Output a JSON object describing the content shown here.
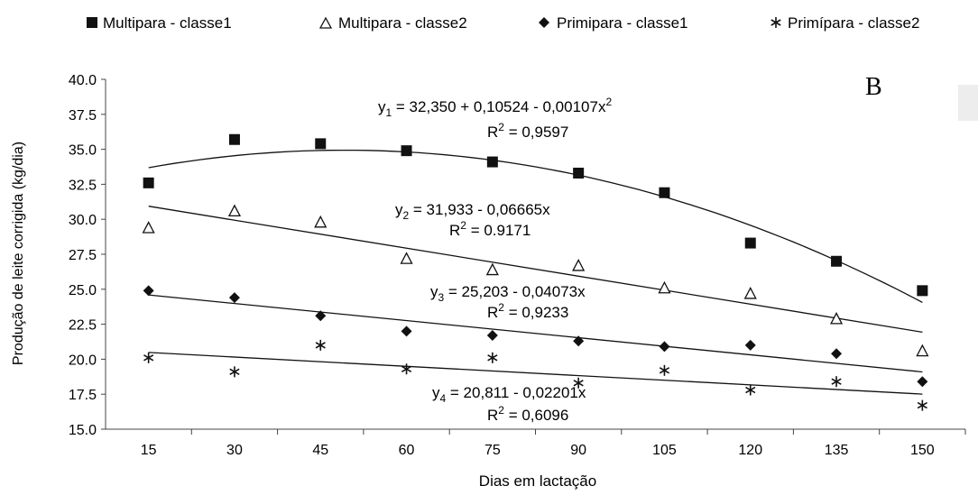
{
  "chart_data": {
    "type": "scatter",
    "panel_label": "B",
    "xlabel": "Dias em lactação",
    "ylabel": "Produção de leite corrigida (kg/dia)",
    "x": [
      15,
      30,
      45,
      60,
      75,
      90,
      105,
      120,
      135,
      150
    ],
    "ylim": [
      15.0,
      40.0
    ],
    "yticks": [
      "15.0",
      "17.5",
      "20.0",
      "22.5",
      "25.0",
      "27.5",
      "30.0",
      "32.5",
      "35.0",
      "37.5",
      "40.0"
    ],
    "xticks": [
      "15",
      "30",
      "45",
      "60",
      "75",
      "90",
      "105",
      "120",
      "135",
      "150"
    ],
    "grid": false,
    "legend_position": "top",
    "series": [
      {
        "name": "Multipara - classe1",
        "marker": "filled-square",
        "values": [
          32.6,
          35.7,
          35.4,
          34.9,
          34.1,
          33.3,
          31.9,
          28.3,
          27.0,
          24.9
        ],
        "fit": {
          "type": "quadratic",
          "coefficients": [
            32.35,
            0.10524,
            -0.00107
          ],
          "x_range": [
            15,
            150
          ]
        },
        "equation": {
          "prefix": "y",
          "sub": "1",
          "body": " = 32,350 + 0,10524 - 0,00107x",
          "sup": "2"
        },
        "r2": {
          "label": "R",
          "sup": "2",
          "value": " = 0,9597"
        }
      },
      {
        "name": "Multipara - classe2",
        "marker": "open-triangle",
        "values": [
          29.4,
          30.6,
          29.8,
          27.2,
          26.4,
          26.7,
          25.1,
          24.7,
          22.9,
          20.6
        ],
        "fit": {
          "type": "linear",
          "coefficients": [
            31.933,
            -0.06665
          ],
          "x_range": [
            15,
            150
          ]
        },
        "equation": {
          "prefix": "y",
          "sub": "2",
          "body": " = 31,933 - 0,06665x",
          "sup": ""
        },
        "r2": {
          "label": "R",
          "sup": "2",
          "value": " = 0.9171"
        }
      },
      {
        "name": "Primipara - classe1",
        "marker": "filled-diamond",
        "values": [
          24.9,
          24.4,
          23.1,
          22.0,
          21.7,
          21.3,
          20.9,
          21.0,
          20.4,
          18.4
        ],
        "fit": {
          "type": "linear",
          "coefficients": [
            25.203,
            -0.04073
          ],
          "x_range": [
            15,
            150
          ]
        },
        "equation": {
          "prefix": "y",
          "sub": "3",
          "body": " = 25,203 - 0,04073x",
          "sup": ""
        },
        "r2": {
          "label": "R",
          "sup": "2",
          "value": " = 0,9233"
        }
      },
      {
        "name": "Primípara - classe2",
        "marker": "asterisk",
        "values": [
          20.1,
          19.1,
          21.0,
          19.3,
          20.1,
          18.3,
          19.2,
          17.8,
          18.4,
          16.7
        ],
        "fit": {
          "type": "linear",
          "coefficients": [
            20.811,
            -0.02201
          ],
          "x_range": [
            15,
            150
          ]
        },
        "equation": {
          "prefix": "y",
          "sub": "4",
          "body": " = 20,811 - 0,02201x",
          "sup": ""
        },
        "r2": {
          "label": "R",
          "sup": "2",
          "value": " = 0,6096"
        }
      }
    ]
  }
}
